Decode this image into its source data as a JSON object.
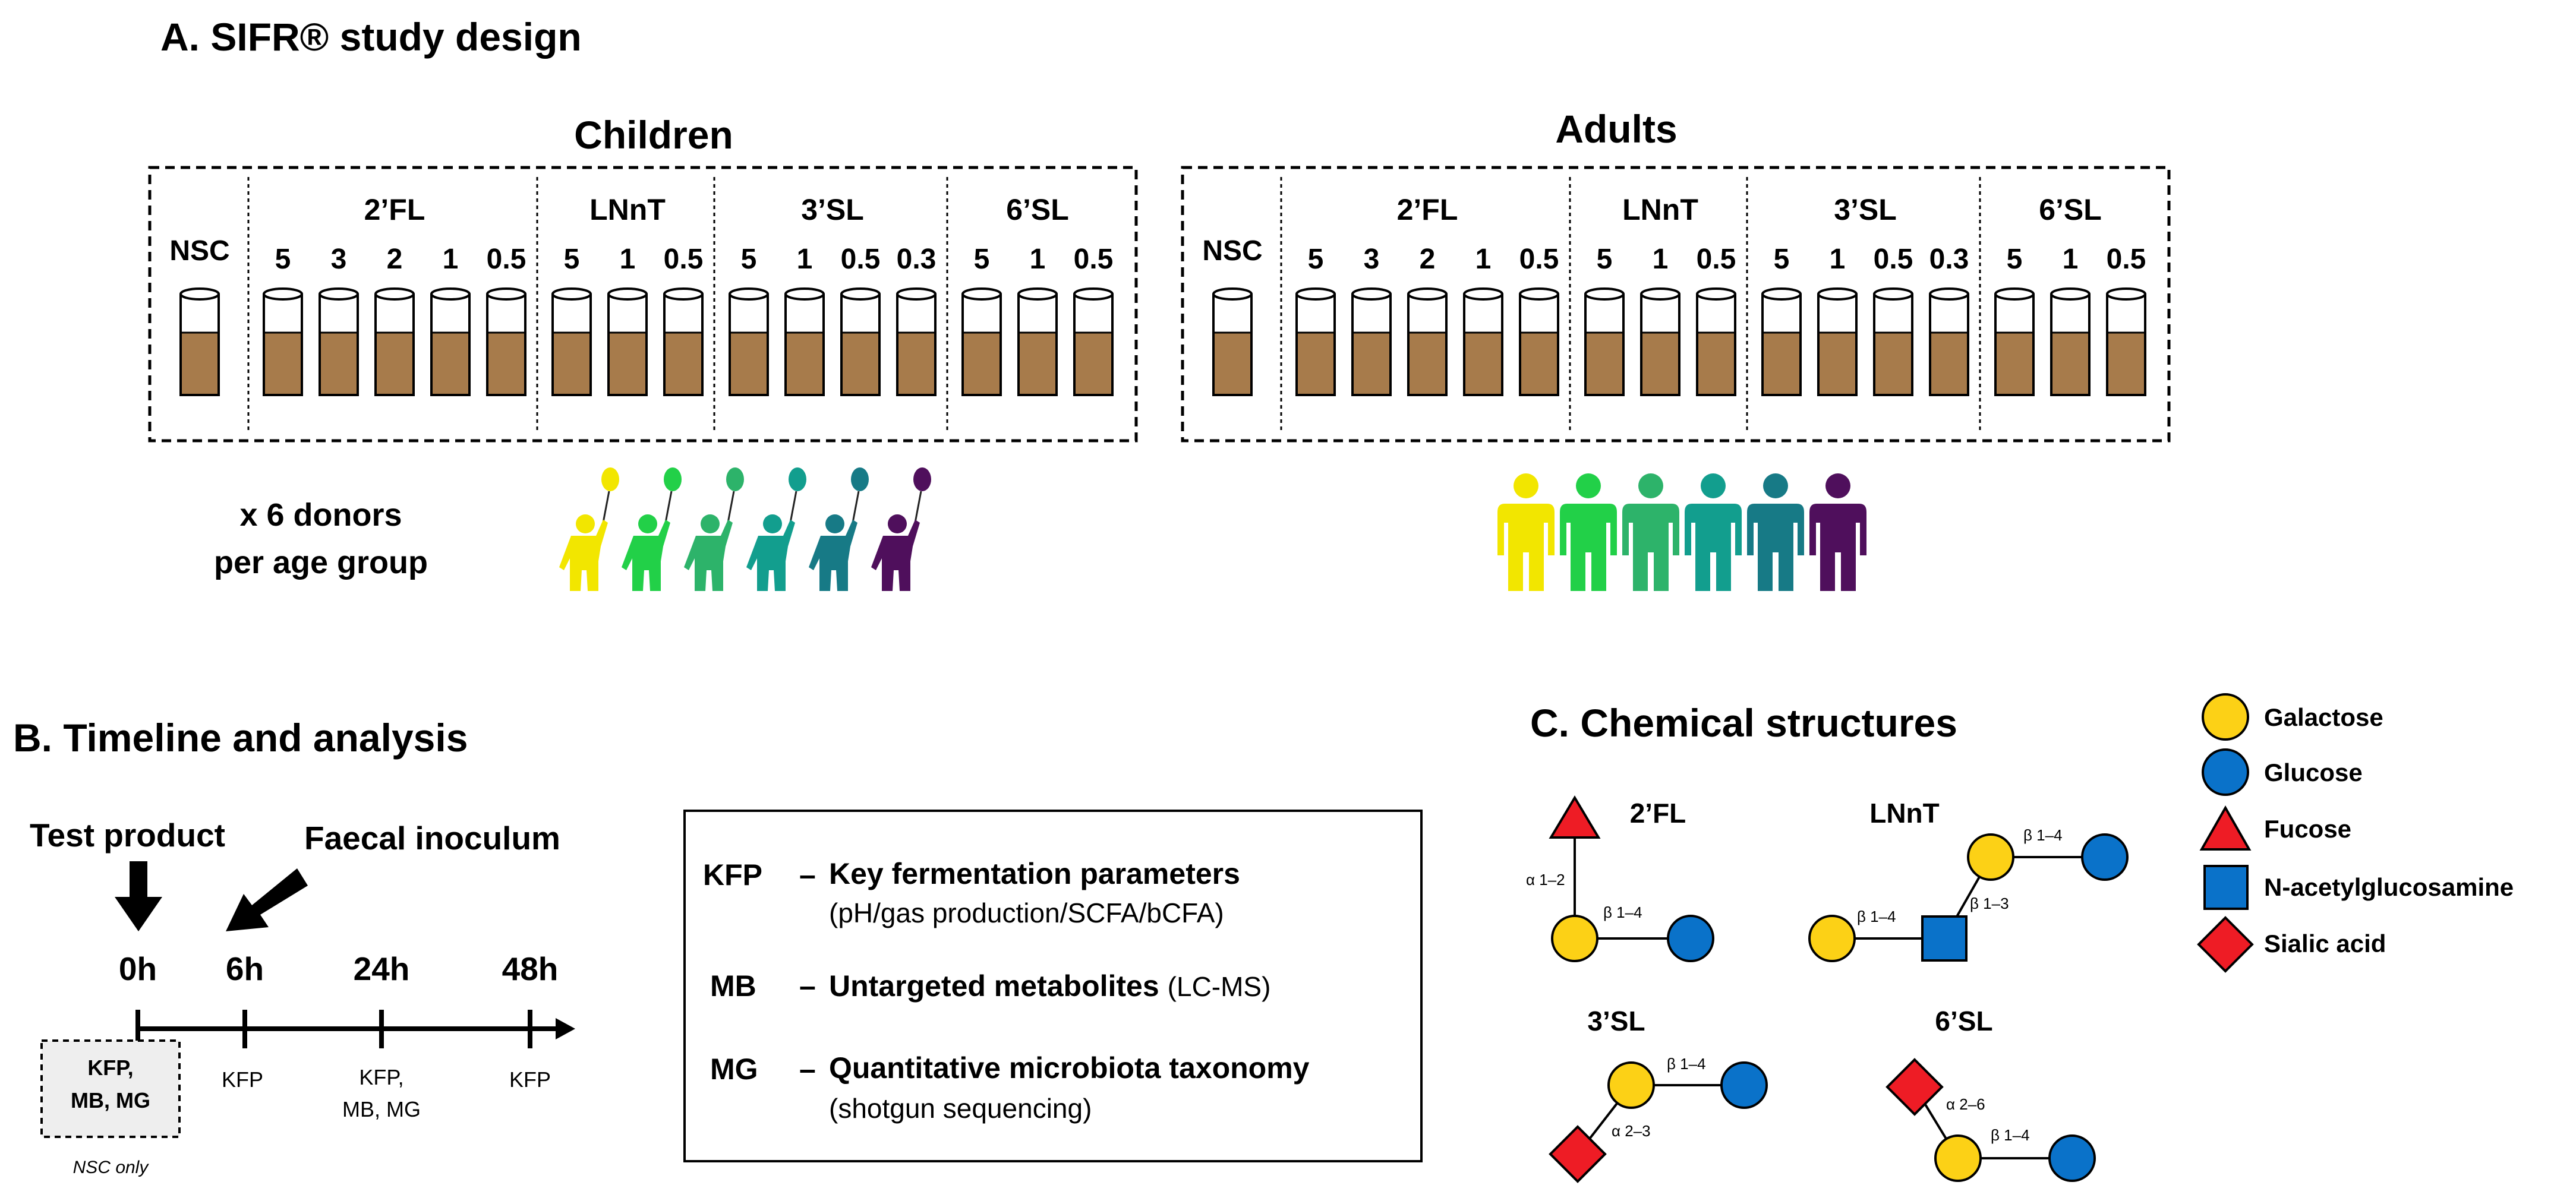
{
  "panel_a": {
    "title": "A. SIFR® study design",
    "groups": [
      {
        "label": "Children",
        "control": "NSC",
        "products": [
          {
            "name": "2’FL",
            "doses": [
              "5",
              "3",
              "2",
              "1",
              "0.5"
            ]
          },
          {
            "name": "LNnT",
            "doses": [
              "5",
              "1",
              "0.5"
            ]
          },
          {
            "name": "3’SL",
            "doses": [
              "5",
              "1",
              "0.5",
              "0.3"
            ]
          },
          {
            "name": "6’SL",
            "doses": [
              "5",
              "1",
              "0.5"
            ]
          }
        ]
      },
      {
        "label": "Adults",
        "control": "NSC",
        "products": [
          {
            "name": "2’FL",
            "doses": [
              "5",
              "3",
              "2",
              "1",
              "0.5"
            ]
          },
          {
            "name": "LNnT",
            "doses": [
              "5",
              "1",
              "0.5"
            ]
          },
          {
            "name": "3’SL",
            "doses": [
              "5",
              "1",
              "0.5",
              "0.3"
            ]
          },
          {
            "name": "6’SL",
            "doses": [
              "5",
              "1",
              "0.5"
            ]
          }
        ]
      }
    ],
    "donors_line1": "x 6 donors",
    "donors_line2": "per age group",
    "donor_colors": [
      "#f2e600",
      "#22d048",
      "#2db36a",
      "#129e8e",
      "#177a86",
      "#4f0f5c"
    ],
    "liquid_color": "#a77b4b"
  },
  "panel_b": {
    "title": "B. Timeline and analysis",
    "test_product": "Test product",
    "faecal_inoculum": "Faecal inoculum",
    "timepoints": [
      {
        "label": "0h",
        "analysis": [
          "KFP,",
          "MB, MG"
        ],
        "boxed": true
      },
      {
        "label": "6h",
        "analysis": [
          "KFP"
        ]
      },
      {
        "label": "24h",
        "analysis": [
          "KFP,",
          "MB, MG"
        ]
      },
      {
        "label": "48h",
        "analysis": [
          "KFP"
        ]
      }
    ],
    "nsc_only": "NSC only",
    "dash": "–",
    "legend": [
      {
        "abbr": "KFP",
        "title": "Key fermentation parameters",
        "detail": "(pH/gas production/SCFA/bCFA)"
      },
      {
        "abbr": "MB",
        "title": "Untargeted metabolites",
        "detail": "(LC-MS)"
      },
      {
        "abbr": "MG",
        "title": "Quantitative microbiota taxonomy",
        "detail": "(shotgun sequencing)"
      }
    ]
  },
  "panel_c": {
    "title": "C. Chemical structures",
    "structures": {
      "fl2": {
        "name": "2’FL",
        "links": [
          "α 1–2",
          "β 1–4"
        ]
      },
      "lnnt": {
        "name": "LNnT",
        "links": [
          "β 1–4",
          "β 1–3",
          "β 1–4"
        ]
      },
      "sl3": {
        "name": "3’SL",
        "links": [
          "β 1–4",
          "α 2–3"
        ]
      },
      "sl6": {
        "name": "6’SL",
        "links": [
          "α 2–6",
          "β 1–4"
        ]
      }
    },
    "legend": [
      {
        "shape": "circle",
        "color": "#fcd116",
        "label": "Galactose"
      },
      {
        "shape": "circle",
        "color": "#0a72c9",
        "label": "Glucose"
      },
      {
        "shape": "triangle",
        "color": "#ee1c25",
        "label": "Fucose"
      },
      {
        "shape": "square",
        "color": "#0a72c9",
        "label": "N-acetylglucosamine"
      },
      {
        "shape": "diamond",
        "color": "#ee1c25",
        "label": "Sialic acid"
      }
    ]
  }
}
